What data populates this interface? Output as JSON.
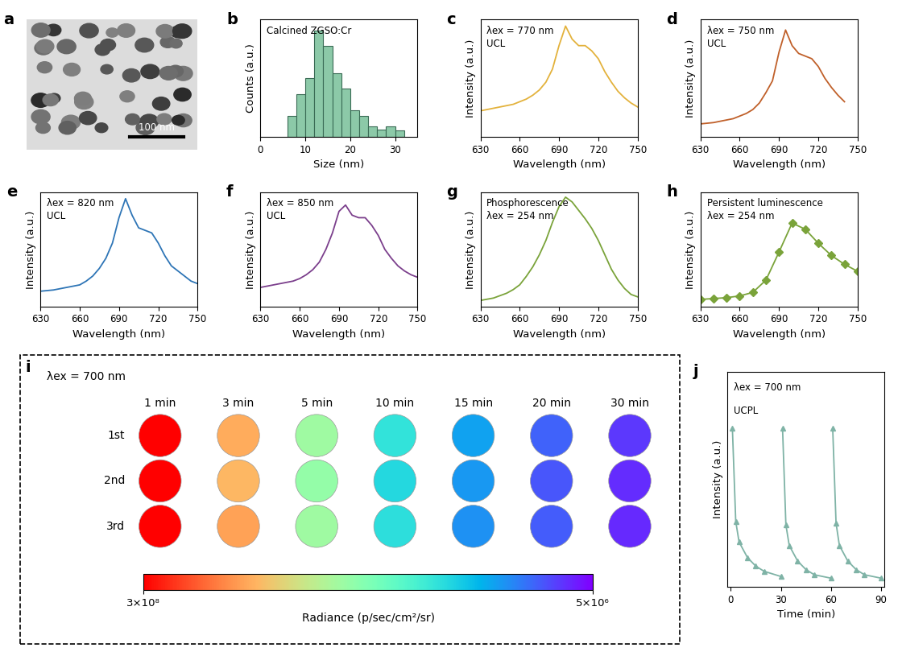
{
  "chart_data": [
    {
      "type": "image",
      "panel": "a",
      "annotations": [
        "100 nm"
      ]
    },
    {
      "type": "histogram",
      "panel": "b",
      "annotations": [
        "Calcined ZGSO:Cr"
      ],
      "x_label": "Size (nm)",
      "y_label": "Counts (a.u.)",
      "bins": [
        6,
        8,
        10,
        12,
        14,
        16,
        18,
        20,
        22,
        24,
        26,
        28,
        30,
        32
      ],
      "counts": [
        2,
        4,
        5.5,
        10,
        8.5,
        6,
        4.5,
        2.5,
        2,
        1,
        0.7,
        1,
        0.6
      ],
      "color": "#8cc9a8",
      "xlim": [
        0,
        35
      ],
      "xticks": [
        0,
        10,
        20,
        30
      ],
      "ylim": [
        0,
        11
      ],
      "yticks": [],
      "tick_labels": "x"
    },
    {
      "type": "line",
      "panel": "c",
      "annotations": [
        "λex = 770 nm",
        "UCL"
      ],
      "x_label": "Wavelength (nm)",
      "y_label": "Intensity (a.u.)",
      "x": [
        630,
        635,
        640,
        645,
        650,
        655,
        660,
        665,
        670,
        675,
        680,
        685,
        690,
        695,
        700,
        705,
        710,
        715,
        720,
        725,
        730,
        735,
        740,
        745,
        750
      ],
      "series": [
        {
          "color": "#e3b23c",
          "line_style": "solid",
          "marker": "none",
          "values": [
            0.3,
            0.31,
            0.32,
            0.33,
            0.34,
            0.35,
            0.37,
            0.39,
            0.42,
            0.46,
            0.52,
            0.62,
            0.8,
            0.95,
            0.85,
            0.8,
            0.8,
            0.76,
            0.7,
            0.6,
            0.52,
            0.45,
            0.4,
            0.36,
            0.33
          ]
        }
      ],
      "xlim": [
        630,
        750
      ],
      "xticks": [
        630,
        660,
        690,
        720,
        750
      ],
      "ylim": [
        0.1,
        1.0
      ],
      "yticks": [],
      "tick_labels": "x"
    },
    {
      "type": "line",
      "panel": "d",
      "annotations": [
        "λex = 750 nm",
        "UCL"
      ],
      "x_label": "Wavelength (nm)",
      "y_label": "Intensity (a.u.)",
      "x": [
        630,
        635,
        640,
        645,
        650,
        655,
        660,
        665,
        670,
        675,
        680,
        685,
        690,
        695,
        700,
        705,
        710,
        715,
        720,
        725,
        730,
        735,
        740,
        745,
        750
      ],
      "series": [
        {
          "color": "#c0602a",
          "line_style": "solid",
          "marker": "none",
          "values": [
            0.2,
            0.205,
            0.21,
            0.22,
            0.23,
            0.24,
            0.26,
            0.28,
            0.31,
            0.36,
            0.44,
            0.53,
            0.75,
            0.92,
            0.8,
            0.74,
            0.72,
            0.7,
            0.64,
            0.55,
            0.48,
            0.42,
            0.37,
            null,
            null
          ]
        }
      ],
      "xlim": [
        630,
        750
      ],
      "xticks": [
        630,
        660,
        690,
        720,
        750
      ],
      "ylim": [
        0.1,
        1.0
      ],
      "yticks": [],
      "tick_labels": "x"
    },
    {
      "type": "line",
      "panel": "e",
      "annotations": [
        "λex = 820 nm",
        "UCL"
      ],
      "x_label": "Wavelength (nm)",
      "y_label": "Intensity (a.u.)",
      "x": [
        630,
        635,
        640,
        645,
        650,
        655,
        660,
        665,
        670,
        675,
        680,
        685,
        690,
        695,
        700,
        705,
        710,
        715,
        720,
        725,
        730,
        735,
        740,
        745,
        750
      ],
      "series": [
        {
          "color": "#2e75b6",
          "line_style": "solid",
          "marker": "none",
          "values": [
            0.22,
            0.225,
            0.23,
            0.24,
            0.25,
            0.26,
            0.27,
            0.3,
            0.34,
            0.4,
            0.48,
            0.6,
            0.8,
            0.95,
            0.82,
            0.72,
            0.7,
            0.68,
            0.6,
            0.5,
            0.42,
            0.38,
            0.34,
            0.3,
            0.28
          ]
        }
      ],
      "xlim": [
        630,
        750
      ],
      "xticks": [
        630,
        660,
        690,
        720,
        750
      ],
      "ylim": [
        0.1,
        1.0
      ],
      "yticks": [],
      "tick_labels": "x"
    },
    {
      "type": "line",
      "panel": "f",
      "annotations": [
        "λex = 850 nm",
        "UCL"
      ],
      "x_label": "Wavelength (nm)",
      "y_label": "Intensity (a.u.)",
      "x": [
        630,
        635,
        640,
        645,
        650,
        655,
        660,
        665,
        670,
        675,
        680,
        685,
        690,
        695,
        700,
        705,
        710,
        715,
        720,
        725,
        730,
        735,
        740,
        745,
        750
      ],
      "series": [
        {
          "color": "#7b3f8c",
          "line_style": "solid",
          "marker": "none",
          "values": [
            0.25,
            0.26,
            0.27,
            0.28,
            0.29,
            0.3,
            0.32,
            0.35,
            0.39,
            0.45,
            0.55,
            0.68,
            0.85,
            0.9,
            0.82,
            0.8,
            0.8,
            0.74,
            0.66,
            0.55,
            0.48,
            0.42,
            0.38,
            0.35,
            0.33
          ]
        }
      ],
      "xlim": [
        630,
        750
      ],
      "xticks": [
        630,
        660,
        690,
        720,
        750
      ],
      "ylim": [
        0.1,
        1.0
      ],
      "yticks": [],
      "tick_labels": "x"
    },
    {
      "type": "line",
      "panel": "g",
      "annotations": [
        "Phosphorescence",
        "λex = 254 nm"
      ],
      "x_label": "Wavelength (nm)",
      "y_label": "Intensity (a.u.)",
      "x": [
        630,
        635,
        640,
        645,
        650,
        655,
        660,
        665,
        670,
        675,
        680,
        685,
        690,
        695,
        700,
        705,
        710,
        715,
        720,
        725,
        730,
        735,
        740,
        745,
        750
      ],
      "series": [
        {
          "color": "#7aa33a",
          "line_style": "solid",
          "marker": "none",
          "values": [
            0.1,
            0.11,
            0.12,
            0.14,
            0.16,
            0.19,
            0.23,
            0.3,
            0.38,
            0.48,
            0.6,
            0.75,
            0.88,
            0.96,
            0.92,
            0.85,
            0.78,
            0.7,
            0.6,
            0.48,
            0.36,
            0.27,
            0.2,
            0.15,
            0.13
          ]
        }
      ],
      "xlim": [
        630,
        750
      ],
      "xticks": [
        630,
        660,
        690,
        720,
        750
      ],
      "ylim": [
        0.05,
        1.0
      ],
      "yticks": [],
      "tick_labels": "x"
    },
    {
      "type": "line",
      "panel": "h",
      "annotations": [
        "Persistent luminescence",
        "λex = 254 nm"
      ],
      "x_label": "Wavelength (nm)",
      "y_label": "Intensity (a.u.)",
      "x": [
        630,
        640,
        650,
        660,
        670,
        680,
        690,
        700,
        710,
        720,
        730,
        740,
        750
      ],
      "series": [
        {
          "color": "#7aa33a",
          "line_style": "solid",
          "marker": "diamond",
          "values": [
            0.08,
            0.09,
            0.1,
            0.12,
            0.16,
            0.3,
            0.62,
            0.95,
            0.88,
            0.72,
            0.58,
            0.48,
            0.4
          ]
        }
      ],
      "xlim": [
        630,
        750
      ],
      "xticks": [
        630,
        660,
        690,
        720,
        750
      ],
      "ylim": [
        0.0,
        1.3
      ],
      "yticks": [],
      "tick_labels": "x"
    },
    {
      "type": "heatmap",
      "panel": "i",
      "annotations": [
        "λex = 700 nm"
      ],
      "columns": [
        "1 min",
        "3 min",
        "5 min",
        "10 min",
        "15 min",
        "20 min",
        "30 min"
      ],
      "rows": [
        "1st",
        "2nd",
        "3rd"
      ],
      "cells": [
        [
          300000000,
          230000000,
          170000000,
          108000000,
          70000000,
          43000000,
          26000000
        ],
        [
          300000000,
          225000000,
          165000000,
          100000000,
          65000000,
          38000000,
          22000000
        ],
        [
          300000000,
          235000000,
          170000000,
          105000000,
          62000000,
          40000000,
          20000000
        ]
      ],
      "colorbar": {
        "range": [
          5000000,
          300000000
        ],
        "ticks": [
          {
            "value": 300000000,
            "label": "3×10⁸"
          },
          {
            "value": 5000000,
            "label": "5×10⁶"
          }
        ],
        "label": "Radiance (p/sec/cm²/sr)"
      }
    },
    {
      "type": "line",
      "panel": "j",
      "annotations": [
        "λex = 700 nm",
        "UCPL"
      ],
      "x_label": "Time (min)",
      "y_label": "Intensity (a.u.)",
      "series": [
        {
          "color": "#7fb3a6",
          "line_style": "solid",
          "marker": "triangle",
          "x": [
            1,
            3,
            5,
            10,
            15,
            20,
            30
          ],
          "values": [
            0.92,
            0.38,
            0.26,
            0.17,
            0.12,
            0.09,
            0.06
          ]
        },
        {
          "color": "#7fb3a6",
          "line_style": "solid",
          "marker": "triangle",
          "x": [
            31,
            33,
            35,
            40,
            45,
            50,
            60
          ],
          "values": [
            0.92,
            0.36,
            0.24,
            0.15,
            0.1,
            0.07,
            0.05
          ]
        },
        {
          "color": "#7fb3a6",
          "line_style": "solid",
          "marker": "triangle",
          "x": [
            61,
            63,
            65,
            70,
            75,
            80,
            90
          ],
          "values": [
            0.92,
            0.37,
            0.24,
            0.15,
            0.1,
            0.07,
            0.05
          ]
        }
      ],
      "xlim": [
        -2,
        92
      ],
      "xticks": [
        0,
        30,
        60,
        90
      ],
      "ylim": [
        0,
        1.25
      ],
      "yticks": [],
      "tick_labels": "x"
    }
  ]
}
